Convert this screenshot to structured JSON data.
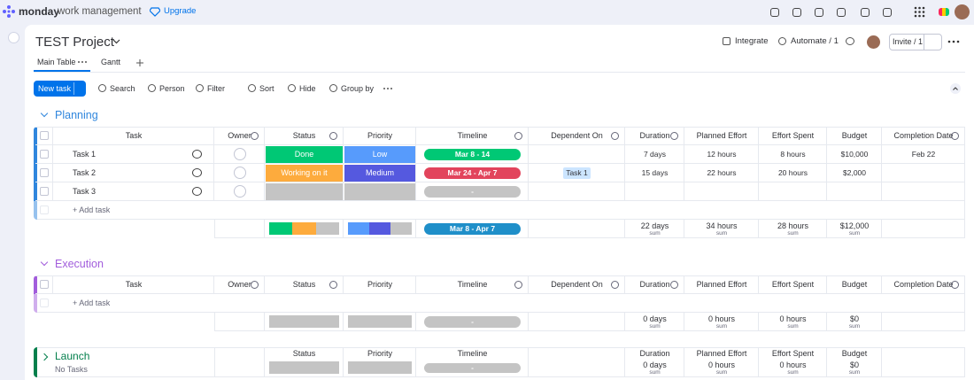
{
  "topbar": {
    "brand": "monday",
    "product": "work management",
    "upgrade": "Upgrade"
  },
  "header": {
    "title": "TEST Project",
    "integrate": "Integrate",
    "automate": "Automate / 1",
    "invite": "Invite / 1"
  },
  "tabs": [
    "Main Table",
    "Gantt"
  ],
  "toolbar": {
    "new_task": "New task",
    "actions": [
      "Search",
      "Person",
      "Filter",
      "Sort",
      "Hide",
      "Group by"
    ]
  },
  "groups": [
    {
      "title": "Planning",
      "color": "#2f86dd",
      "columns": {
        "task": "Task",
        "owner": "Owner",
        "status": "Status",
        "priority": "Priority",
        "timeline": "Timeline",
        "dependent": "Dependent On",
        "duration": "Duration",
        "planned": "Planned Effort",
        "spent": "Effort Spent",
        "budget": "Budget",
        "completion": "Completion Date"
      },
      "rows": [
        {
          "task": "Task 1",
          "status": {
            "label": "Done",
            "color": "#00c875"
          },
          "priority": {
            "label": "Low",
            "color": "#579bfc"
          },
          "timeline": {
            "label": "Mar 8 - 14",
            "color": "#00c875"
          },
          "duration": "7 days",
          "planned": "12 hours",
          "spent": "8 hours",
          "budget": "$10,000",
          "completion": "Feb 22"
        },
        {
          "task": "Task 2",
          "status": {
            "label": "Working on it",
            "color": "#fdab3d"
          },
          "priority": {
            "label": "Medium",
            "color": "#5559df"
          },
          "timeline": {
            "label": "Mar 24 - Apr 7",
            "color": "#e2445c"
          },
          "dependent": "Task 1",
          "duration": "15 days",
          "planned": "22 hours",
          "spent": "20 hours",
          "budget": "$2,000"
        },
        {
          "task": "Task 3",
          "timeline": {
            "label": "-",
            "color": "#c4c4c4"
          }
        }
      ],
      "add_task": "+ Add task",
      "summary": {
        "timeline": {
          "label": "Mar 8 - Apr 7",
          "color": "#1f8fc9"
        },
        "duration": {
          "value": "22 days",
          "label": "sum"
        },
        "planned": {
          "value": "34 hours",
          "label": "sum"
        },
        "spent": {
          "value": "28 hours",
          "label": "sum"
        },
        "budget": {
          "value": "$12,000",
          "label": "sum"
        }
      }
    },
    {
      "title": "Execution",
      "color": "#a25ddc",
      "columns": {
        "task": "Task",
        "owner": "Owner",
        "status": "Status",
        "priority": "Priority",
        "timeline": "Timeline",
        "dependent": "Dependent On",
        "duration": "Duration",
        "planned": "Planned Effort",
        "spent": "Effort Spent",
        "budget": "Budget",
        "completion": "Completion Date"
      },
      "rows": [],
      "add_task": "+ Add task",
      "summary": {
        "timeline": {
          "label": "-",
          "color": "#c4c4c4"
        },
        "duration": {
          "value": "0 days",
          "label": "sum"
        },
        "planned": {
          "value": "0 hours",
          "label": "sum"
        },
        "spent": {
          "value": "0 hours",
          "label": "sum"
        },
        "budget": {
          "value": "$0",
          "label": "sum"
        }
      }
    },
    {
      "title": "Launch",
      "color": "#037f4c",
      "collapsed": true,
      "empty_text": "No Tasks",
      "columns": {
        "status": "Status",
        "priority": "Priority",
        "timeline": "Timeline",
        "duration": "Duration",
        "planned": "Planned Effort",
        "spent": "Effort Spent",
        "budget": "Budget"
      },
      "summary": {
        "timeline": {
          "label": "-",
          "color": "#c4c4c4"
        },
        "duration": {
          "value": "0 days",
          "label": "sum"
        },
        "planned": {
          "value": "0 hours",
          "label": "sum"
        },
        "spent": {
          "value": "0 hours",
          "label": "sum"
        },
        "budget": {
          "value": "$0",
          "label": "sum"
        }
      }
    }
  ]
}
